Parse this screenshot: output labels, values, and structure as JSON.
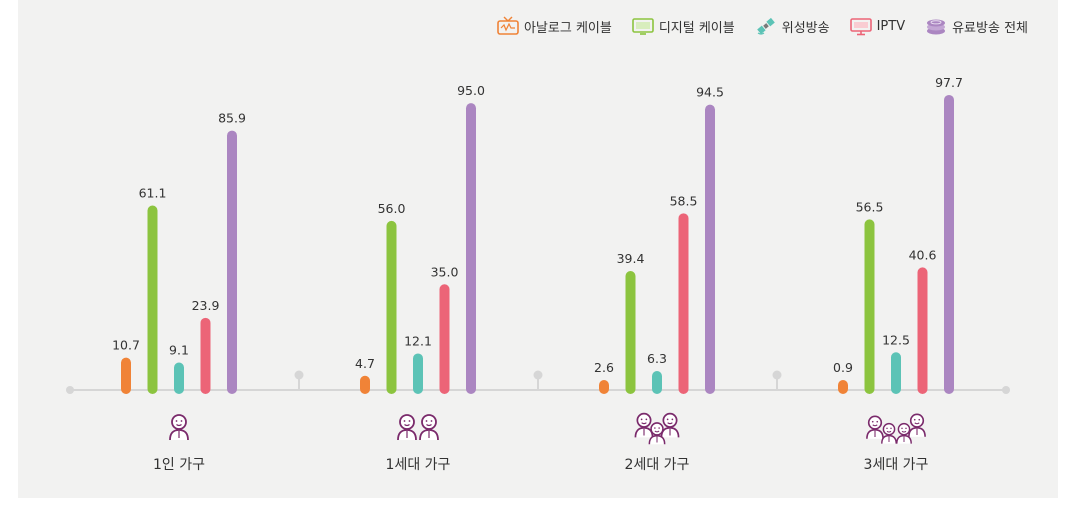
{
  "legend": [
    {
      "label": "아날로그 케이블",
      "color": "#f08337",
      "icon": "tv-icon"
    },
    {
      "label": "디지털 케이블",
      "color": "#8cc43f",
      "icon": "flat-tv-icon"
    },
    {
      "label": "위성방송",
      "color": "#5cc3b6",
      "icon": "satellite-icon"
    },
    {
      "label": "IPTV",
      "color": "#ec6477",
      "icon": "monitor-icon"
    },
    {
      "label": "유료방송 전체",
      "color": "#ab86c1",
      "icon": "coin-stack-icon"
    }
  ],
  "chart_data": {
    "type": "bar",
    "categories": [
      "1인 가구",
      "1세대 가구",
      "2세대 가구",
      "3세대 가구"
    ],
    "series": [
      {
        "name": "아날로그 케이블",
        "color": "#f08337",
        "values": [
          10.7,
          4.7,
          2.6,
          0.9
        ]
      },
      {
        "name": "디지털 케이블",
        "color": "#8cc43f",
        "values": [
          61.1,
          56.0,
          39.4,
          56.5
        ]
      },
      {
        "name": "위성방송",
        "color": "#5cc3b6",
        "values": [
          9.1,
          12.1,
          6.3,
          12.5
        ]
      },
      {
        "name": "IPTV",
        "color": "#ec6477",
        "values": [
          23.9,
          35.0,
          58.5,
          40.6
        ]
      },
      {
        "name": "유료방송 전체",
        "color": "#ab86c1",
        "values": [
          85.9,
          95.0,
          94.5,
          97.7
        ]
      }
    ],
    "value_labels": [
      [
        "10.7",
        "4.7",
        "2.6",
        "0.9"
      ],
      [
        "61.1",
        "56.0",
        "39.4",
        "56.5"
      ],
      [
        "9.1",
        "12.1",
        "6.3",
        "12.5"
      ],
      [
        "23.9",
        "35.0",
        "58.5",
        "40.6"
      ],
      [
        "85.9",
        "95.0",
        "94.5",
        "97.7"
      ]
    ],
    "category_icons": [
      "one-person-icon",
      "couple-icon",
      "family-three-icon",
      "family-four-icon"
    ],
    "ylim": [
      0,
      100
    ],
    "legend_position": "top-right",
    "grid": false
  },
  "colors": {
    "axis": "#d6d6d6",
    "icon": "#7a2a6b",
    "panel": "#f2f2f1"
  }
}
